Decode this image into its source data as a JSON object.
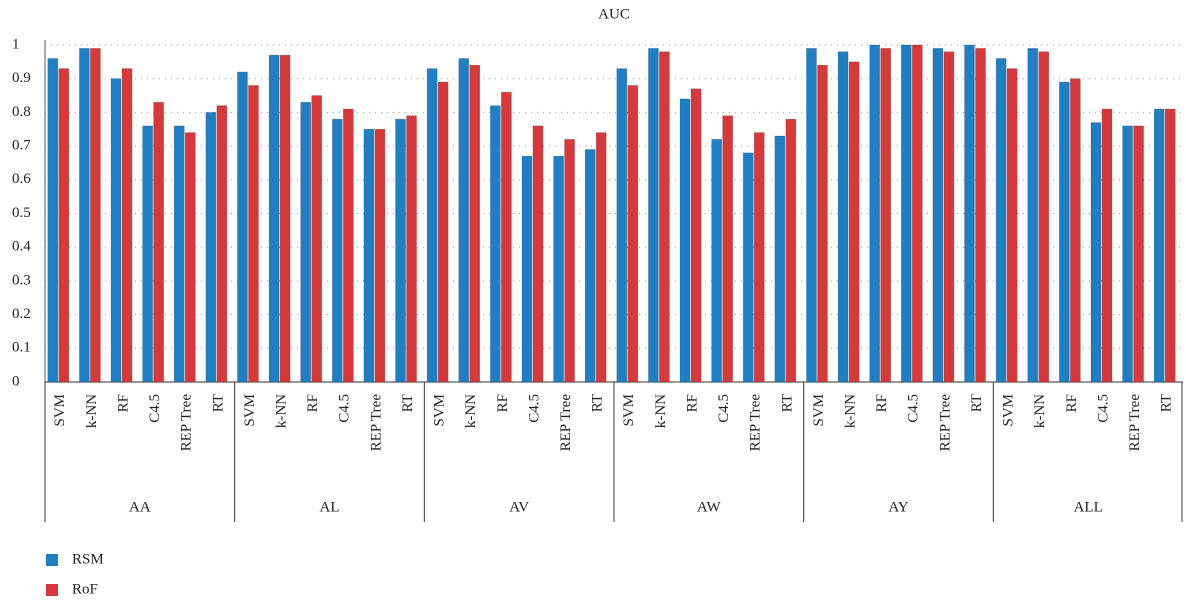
{
  "chart_data": {
    "type": "bar",
    "title": "AUC",
    "groups": [
      "AA",
      "AL",
      "AV",
      "AW",
      "AY",
      "ALL"
    ],
    "categories": [
      "SVM",
      "k-NN",
      "RF",
      "C4.5",
      "REP Tree",
      "RT",
      "SVM",
      "k-NN",
      "RF",
      "C4.5",
      "REP Tree",
      "RT",
      "SVM",
      "k-NN",
      "RF",
      "C4.5",
      "REP Tree",
      "RT",
      "SVM",
      "k-NN",
      "RF",
      "C4.5",
      "REP Tree",
      "RT",
      "SVM",
      "k-NN",
      "RF",
      "C4.5",
      "REP Tree",
      "RT",
      "SVM",
      "k-NN",
      "RF",
      "C4.5",
      "REP Tree",
      "RT"
    ],
    "series": [
      {
        "name": "RSM",
        "color": "#1f7fc4",
        "values": [
          0.96,
          0.99,
          0.9,
          0.76,
          0.76,
          0.8,
          0.92,
          0.97,
          0.83,
          0.78,
          0.75,
          0.78,
          0.93,
          0.96,
          0.82,
          0.67,
          0.67,
          0.69,
          0.93,
          0.99,
          0.84,
          0.72,
          0.68,
          0.73,
          0.99,
          0.98,
          1.0,
          1.0,
          0.99,
          1.0,
          0.96,
          0.99,
          0.89,
          0.77,
          0.76,
          0.81
        ]
      },
      {
        "name": "RoF",
        "color": "#d8383a",
        "values": [
          0.93,
          0.99,
          0.93,
          0.83,
          0.74,
          0.82,
          0.88,
          0.97,
          0.85,
          0.81,
          0.75,
          0.79,
          0.89,
          0.94,
          0.86,
          0.76,
          0.72,
          0.74,
          0.88,
          0.98,
          0.87,
          0.79,
          0.74,
          0.78,
          0.94,
          0.95,
          0.99,
          1.0,
          0.98,
          0.99,
          0.93,
          0.98,
          0.9,
          0.81,
          0.76,
          0.81
        ]
      }
    ],
    "ylim": [
      0,
      1
    ],
    "yticks": [
      0,
      0.1,
      0.2,
      0.3,
      0.4,
      0.5,
      0.6,
      0.7,
      0.8,
      0.9,
      1
    ],
    "grid": true
  }
}
